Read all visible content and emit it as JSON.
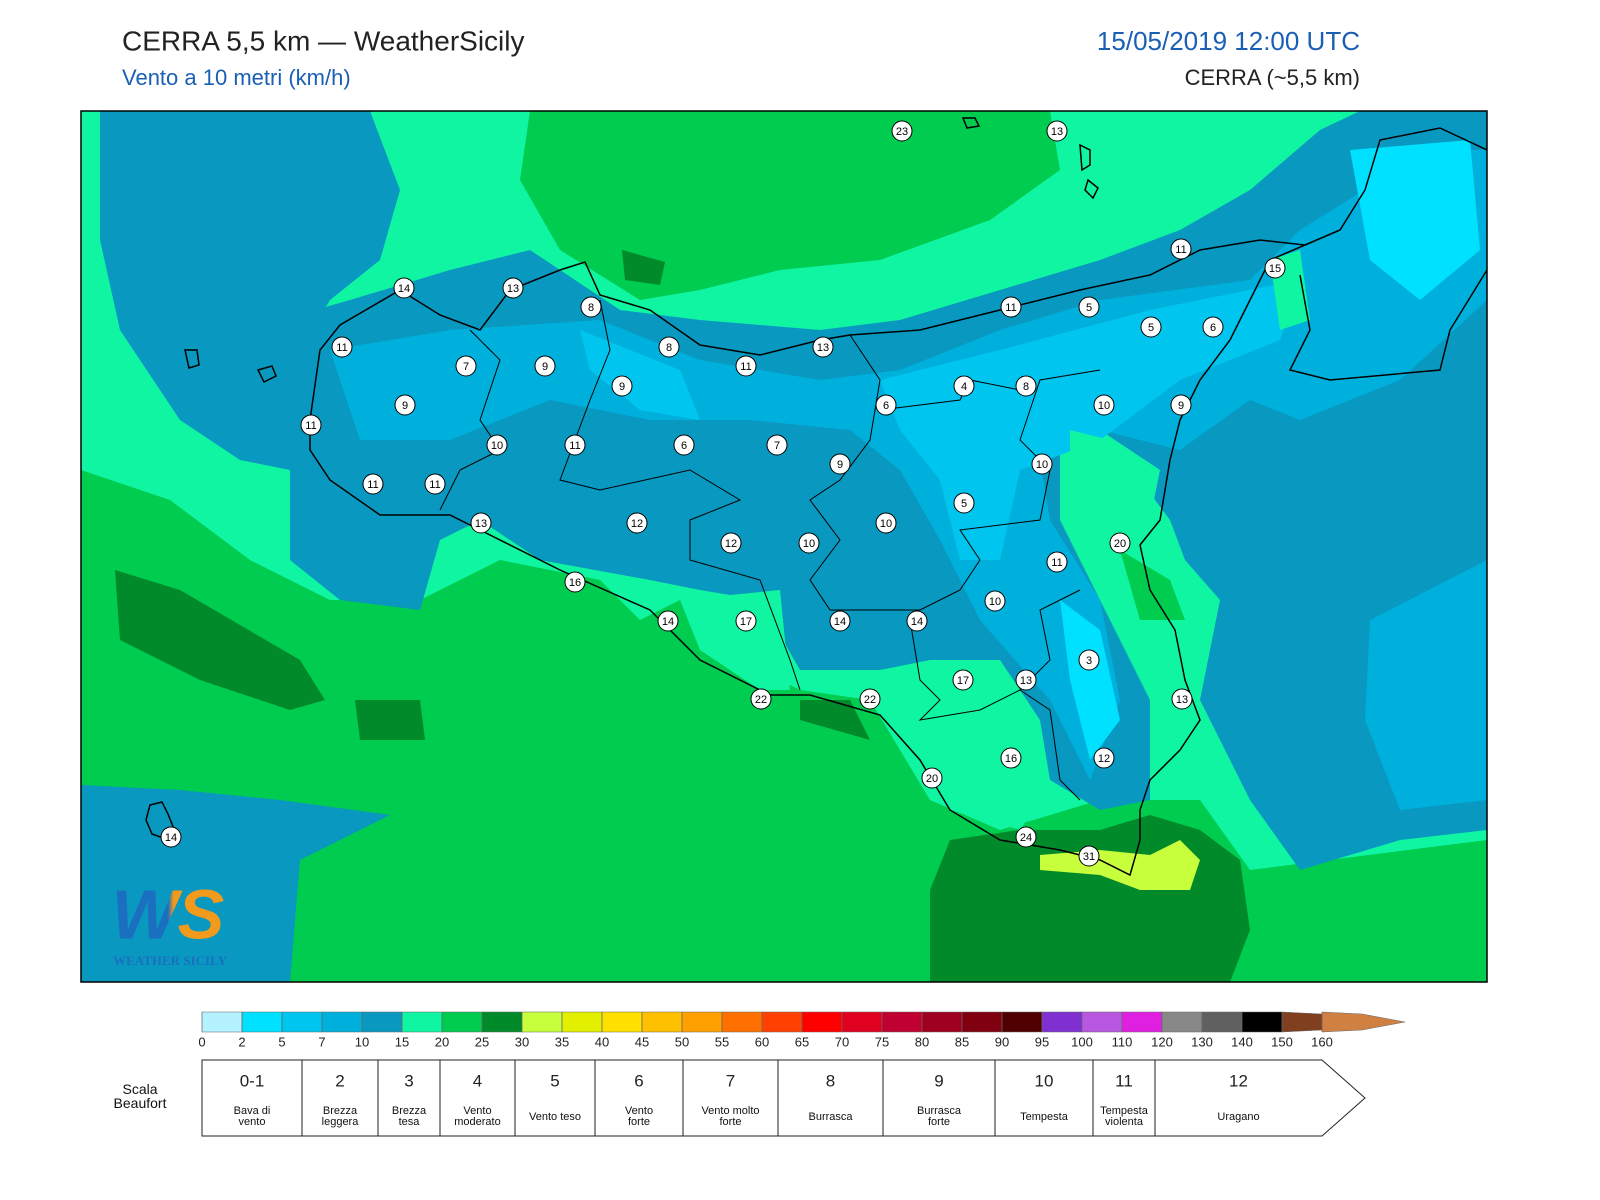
{
  "header": {
    "title": "CERRA 5,5 km — WeatherSicily",
    "subtitle": "Vento a 10 metri (km/h)",
    "datetime": "15/05/2019 12:00 UTC",
    "model": "CERRA (~5,5 km)"
  },
  "map": {
    "stations": [
      23,
      13,
      11,
      15,
      14,
      13,
      8,
      11,
      5,
      5,
      6,
      11,
      8,
      13,
      7,
      9,
      11,
      4,
      8,
      9,
      9,
      6,
      10,
      9,
      11,
      10,
      11,
      6,
      7,
      9,
      10,
      11,
      11,
      5,
      13,
      12,
      10,
      12,
      10,
      20,
      11,
      16,
      10,
      14,
      17,
      14,
      14,
      3,
      17,
      13,
      13,
      22,
      22,
      16,
      12,
      20,
      24,
      31,
      14
    ]
  },
  "logo": {
    "mark": "WS",
    "caption": "WEATHER SICILY"
  },
  "colorbar": {
    "ticks": [
      0,
      2,
      5,
      7,
      10,
      15,
      20,
      25,
      30,
      35,
      40,
      45,
      50,
      55,
      60,
      65,
      70,
      75,
      80,
      85,
      90,
      95,
      100,
      110,
      120,
      130,
      140,
      150,
      160
    ],
    "colors": [
      "#b4f2ff",
      "#00e0ff",
      "#00c6ef",
      "#00b0dc",
      "#0898c0",
      "#10f5a2",
      "#00cc50",
      "#008a2a",
      "#c8ff3c",
      "#e2f000",
      "#ffe000",
      "#ffc000",
      "#ffa000",
      "#ff7000",
      "#ff4000",
      "#ff0000",
      "#e00020",
      "#c00030",
      "#a00020",
      "#800010",
      "#500000",
      "#8030d0",
      "#b858e0",
      "#e020e0",
      "#888888",
      "#606060",
      "#000000",
      "#804020",
      "#d08040"
    ]
  },
  "beaufort": {
    "label": "Scala Beaufort",
    "classes": [
      {
        "force": "0-1",
        "description": "Bava di vento"
      },
      {
        "force": 2,
        "description": "Brezza leggera"
      },
      {
        "force": 3,
        "description": "Brezza tesa"
      },
      {
        "force": 4,
        "description": "Vento moderato"
      },
      {
        "force": 5,
        "description": "Vento teso"
      },
      {
        "force": 6,
        "description": "Vento forte"
      },
      {
        "force": 7,
        "description": "Vento molto forte"
      },
      {
        "force": 8,
        "description": "Burrasca"
      },
      {
        "force": 9,
        "description": "Burrasca forte"
      },
      {
        "force": 10,
        "description": "Tempesta"
      },
      {
        "force": 11,
        "description": "Tempesta violenta"
      },
      {
        "force": 12,
        "description": "Uragano"
      }
    ]
  }
}
